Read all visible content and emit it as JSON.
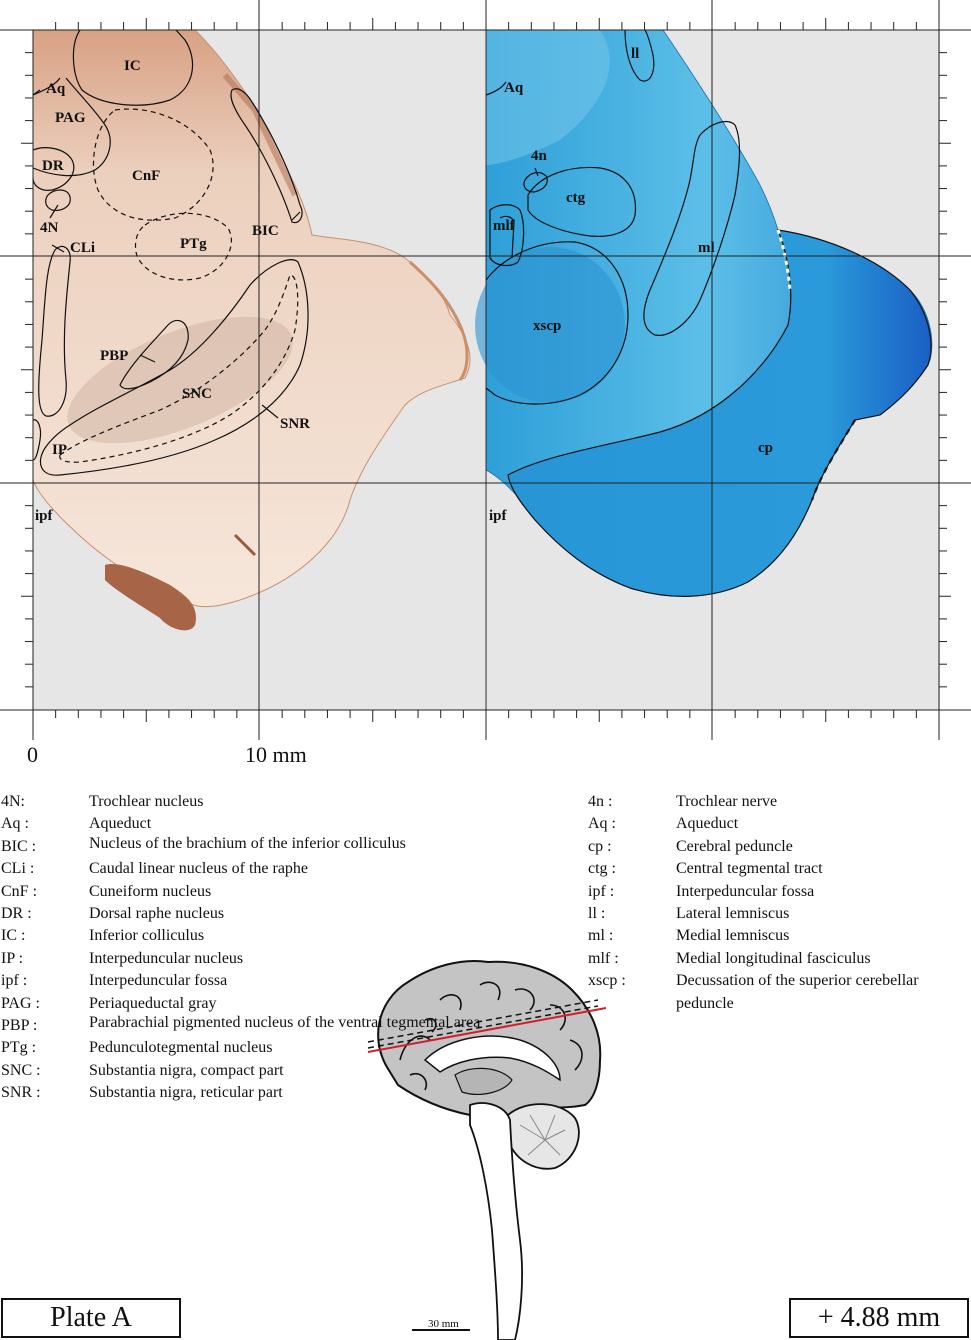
{
  "scale": {
    "zero": "0",
    "ten": "10 mm"
  },
  "left_panel": {
    "labels": {
      "ic": "IC",
      "aq": "Aq",
      "pag": "PAG",
      "dr": "DR",
      "cnf": "CnF",
      "n4": "4N",
      "bic": "BIC",
      "ptg": "PTg",
      "cli": "CLi",
      "pbp": "PBP",
      "snc": "SNC",
      "snr": "SNR",
      "ip": "IP",
      "ipf": "ipf"
    }
  },
  "right_panel": {
    "labels": {
      "ll": "ll",
      "aq": "Aq",
      "n4": "4n",
      "ctg": "ctg",
      "mlf": "mlf",
      "ml": "ml",
      "xscp": "xscp",
      "cp": "cp",
      "ipf": "ipf"
    }
  },
  "legend_left": [
    {
      "abbr": "4N:",
      "def": "Trochlear nucleus"
    },
    {
      "abbr": "Aq :",
      "def": "Aqueduct"
    },
    {
      "abbr": "BIC :",
      "def": "Nucleus of the brachium of the inferior colliculus"
    },
    {
      "abbr": "CLi :",
      "def": "Caudal linear nucleus of the raphe"
    },
    {
      "abbr": "CnF :",
      "def": "Cuneiform nucleus"
    },
    {
      "abbr": "DR :",
      "def": "Dorsal raphe nucleus"
    },
    {
      "abbr": "IC :",
      "def": "Inferior colliculus"
    },
    {
      "abbr": "IP :",
      "def": "Interpeduncular nucleus"
    },
    {
      "abbr": "ipf :",
      "def": "Interpeduncular fossa"
    },
    {
      "abbr": "PAG :",
      "def": "Periaqueductal gray"
    },
    {
      "abbr": "PBP :",
      "def": "Parabrachial pigmented nucleus of the ventral tegmental area"
    },
    {
      "abbr": "PTg :",
      "def": "Pedunculotegmental nucleus"
    },
    {
      "abbr": "SNC :",
      "def": "Substantia nigra, compact part"
    },
    {
      "abbr": "SNR :",
      "def": "Substantia nigra, reticular part"
    }
  ],
  "legend_right": [
    {
      "abbr": "4n :",
      "def": "Trochlear nerve"
    },
    {
      "abbr": "Aq :",
      "def": "Aqueduct"
    },
    {
      "abbr": "cp :",
      "def": "Cerebral peduncle"
    },
    {
      "abbr": "ctg :",
      "def": "Central tegmental tract"
    },
    {
      "abbr": "ipf :",
      "def": "Interpeduncular fossa"
    },
    {
      "abbr": "ll :",
      "def": "Lateral lemniscus"
    },
    {
      "abbr": "ml :",
      "def": "Medial lemniscus"
    },
    {
      "abbr": "mlf :",
      "def": "Medial longitudinal fasciculus"
    },
    {
      "abbr": "xscp :",
      "def": "Decussation of the superior cerebellar peduncle"
    }
  ],
  "plate_label": "Plate A",
  "plate_position": "+ 4.88 mm",
  "scale_bar_label": "30 mm",
  "colors": {
    "grid_background": "#e6e6e6",
    "stain_left": "#f0d8c6",
    "stain_right": "#3aa8dd",
    "section_line": "#d0202a"
  }
}
